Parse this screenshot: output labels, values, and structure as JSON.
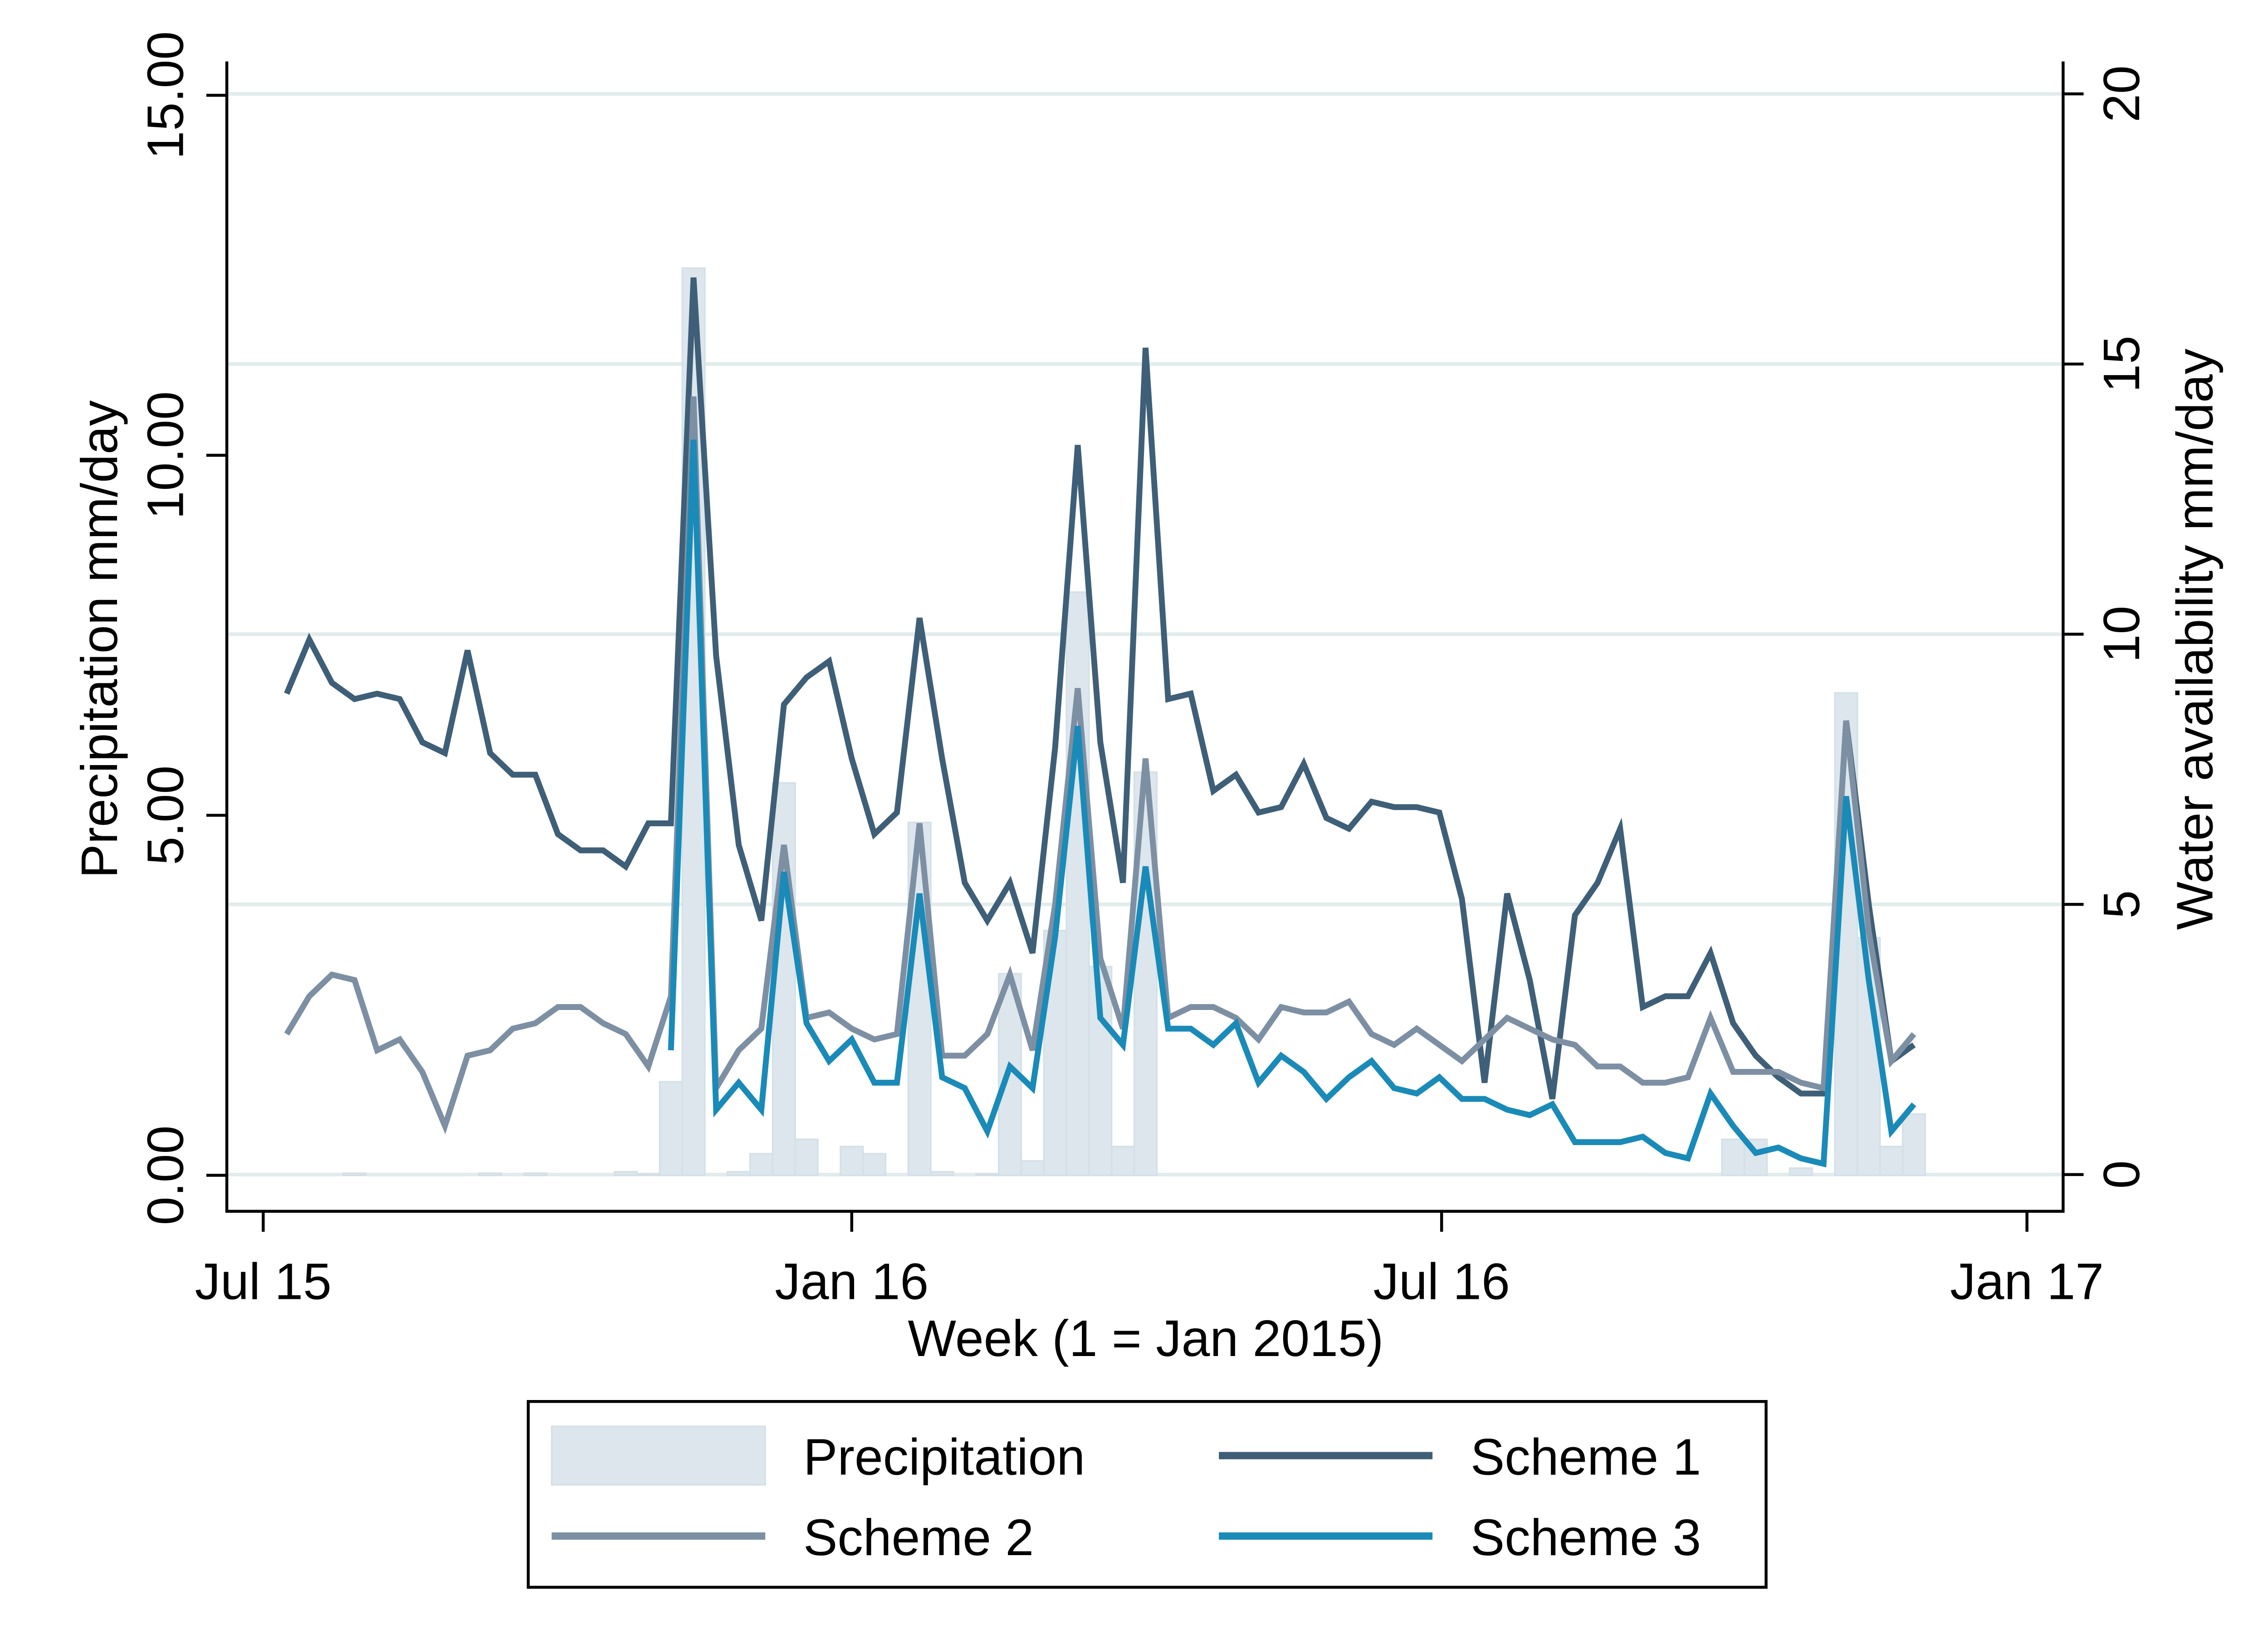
{
  "chart_data": {
    "type": "line",
    "x_label": "Week (1 = Jan 2015)",
    "y_label": "Precipitation mm/day",
    "y2_label": "Water availability mm/day",
    "x": [
      27,
      28,
      29,
      30,
      31,
      32,
      33,
      34,
      35,
      36,
      37,
      38,
      39,
      40,
      41,
      42,
      43,
      44,
      45,
      46,
      47,
      48,
      49,
      50,
      51,
      52,
      53,
      54,
      55,
      56,
      57,
      58,
      59,
      60,
      61,
      62,
      63,
      64,
      65,
      66,
      67,
      68,
      69,
      70,
      71,
      72,
      73,
      74,
      75,
      76,
      77,
      78,
      79,
      80,
      81,
      82,
      83,
      84,
      85,
      86,
      87,
      88,
      89,
      90,
      91,
      92,
      93,
      94,
      95,
      96,
      97,
      98,
      99
    ],
    "xlim": [
      24.35,
      105.6
    ],
    "xticks": [
      {
        "value": 25.96,
        "label": "Jul 15"
      },
      {
        "value": 52.0,
        "label": "Jan 16"
      },
      {
        "value": 78.1,
        "label": "Jul 16"
      },
      {
        "value": 104.0,
        "label": "Jan 17"
      }
    ],
    "ylim": [
      -0.5,
      15.47
    ],
    "yticks": [
      {
        "value": 0,
        "label": "0.00"
      },
      {
        "value": 5,
        "label": "5.00"
      },
      {
        "value": 10,
        "label": "10.00"
      },
      {
        "value": 15,
        "label": "15.00"
      }
    ],
    "y2lim": [
      -0.68,
      20.6
    ],
    "y2ticks": [
      0,
      5,
      10,
      15,
      20
    ],
    "grid": true,
    "series": [
      {
        "name": "Precipitation",
        "type": "bar",
        "color": "#dce6ec",
        "values": [
          0,
          0,
          0,
          0.03,
          0,
          0,
          0,
          0,
          0,
          0.03,
          0,
          0.03,
          0,
          0,
          0,
          0.05,
          0.02,
          1.3,
          12.6,
          0,
          0.05,
          0.3,
          5.45,
          0.5,
          0,
          0.4,
          0.3,
          0,
          4.9,
          0.05,
          0,
          0.02,
          2.8,
          0.2,
          3.4,
          8.1,
          2.9,
          0.4,
          5.6,
          0,
          0,
          0,
          0,
          0,
          0,
          0,
          0,
          0,
          0,
          0,
          0,
          0,
          0,
          0,
          0,
          0,
          0,
          0,
          0,
          0,
          0,
          0,
          0,
          0,
          0.5,
          0.5,
          0,
          0.1,
          0,
          6.7,
          3.3,
          0.4,
          0.85
        ]
      },
      {
        "name": "Scheme 1",
        "type": "line",
        "axis": "y2",
        "color": "#3e5f77",
        "values": [
          8.9,
          9.9,
          9.1,
          8.8,
          8.9,
          8.8,
          8.0,
          7.8,
          9.7,
          7.8,
          7.4,
          7.4,
          6.3,
          6.0,
          6.0,
          5.7,
          6.5,
          6.5,
          16.6,
          9.6,
          6.1,
          4.7,
          8.7,
          9.2,
          9.5,
          7.7,
          6.3,
          6.7,
          10.3,
          7.7,
          5.4,
          4.7,
          5.4,
          4.1,
          7.9,
          13.5,
          8.0,
          5.4,
          15.3,
          8.8,
          8.9,
          7.1,
          7.4,
          6.7,
          6.8,
          7.6,
          6.6,
          6.4,
          6.9,
          6.8,
          6.8,
          6.7,
          5.1,
          1.7,
          5.2,
          3.6,
          1.4,
          4.8,
          5.4,
          6.4,
          3.1,
          3.3,
          3.3,
          4.1,
          2.8,
          2.2,
          1.8,
          1.5,
          1.5,
          8.4,
          5.0,
          2.1,
          2.4
        ]
      },
      {
        "name": "Scheme 2",
        "type": "line",
        "axis": "y2",
        "color": "#7d8fa3",
        "values": [
          2.6,
          3.3,
          3.7,
          3.6,
          2.3,
          2.5,
          1.9,
          0.9,
          2.2,
          2.3,
          2.7,
          2.8,
          3.1,
          3.1,
          2.8,
          2.6,
          2.0,
          3.3,
          14.4,
          1.6,
          2.3,
          2.7,
          6.1,
          2.9,
          3.0,
          2.7,
          2.5,
          2.6,
          6.5,
          2.2,
          2.2,
          2.6,
          3.7,
          2.3,
          5.0,
          9.0,
          4.0,
          2.7,
          7.7,
          2.9,
          3.1,
          3.1,
          2.9,
          2.5,
          3.1,
          3.0,
          3.0,
          3.2,
          2.6,
          2.4,
          2.7,
          2.4,
          2.1,
          2.5,
          2.9,
          2.7,
          2.5,
          2.4,
          2.0,
          2.0,
          1.7,
          1.7,
          1.8,
          2.9,
          1.9,
          1.9,
          1.9,
          1.7,
          1.6,
          8.4,
          4.5,
          2.1,
          2.6
        ]
      },
      {
        "name": "Scheme 3",
        "type": "line",
        "axis": "y2",
        "color": "#1a8ab8",
        "values": [
          null,
          null,
          null,
          null,
          null,
          null,
          null,
          null,
          null,
          null,
          null,
          null,
          null,
          null,
          null,
          null,
          null,
          2.3,
          13.6,
          1.2,
          1.7,
          1.2,
          5.6,
          2.8,
          2.1,
          2.5,
          1.7,
          1.7,
          5.2,
          1.8,
          1.6,
          0.8,
          2.0,
          1.6,
          4.4,
          8.3,
          2.9,
          2.4,
          5.7,
          2.7,
          2.7,
          2.4,
          2.8,
          1.7,
          2.2,
          1.9,
          1.4,
          1.8,
          2.1,
          1.6,
          1.5,
          1.8,
          1.4,
          1.4,
          1.2,
          1.1,
          1.3,
          0.6,
          0.6,
          0.6,
          0.7,
          0.4,
          0.3,
          1.5,
          0.9,
          0.4,
          0.5,
          0.3,
          0.2,
          7.0,
          3.6,
          0.8,
          1.3
        ]
      }
    ]
  }
}
